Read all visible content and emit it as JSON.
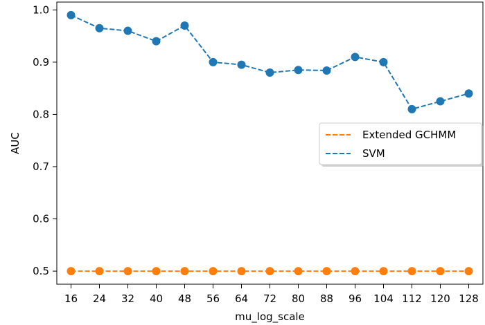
{
  "chart_data": {
    "type": "line",
    "xlabel": "mu_log_scale",
    "ylabel": "AUC",
    "categories": [
      "16",
      "24",
      "32",
      "40",
      "48",
      "56",
      "64",
      "72",
      "80",
      "88",
      "96",
      "104",
      "112",
      "120",
      "128"
    ],
    "x": [
      16,
      24,
      32,
      40,
      48,
      56,
      64,
      72,
      80,
      88,
      96,
      104,
      112,
      120,
      128
    ],
    "yticks": [
      "0.5",
      "0.6",
      "0.7",
      "0.8",
      "0.9",
      "1.0"
    ],
    "ylim": [
      0.475,
      1.015
    ],
    "xlim": [
      12,
      132
    ],
    "grid": false,
    "legend_position": "right",
    "series": [
      {
        "name": "Extended GCHMM",
        "color": "#ff7f0e",
        "linestyle": "dashed",
        "marker": "circle",
        "values": [
          0.5,
          0.5,
          0.5,
          0.5,
          0.5,
          0.5,
          0.5,
          0.5,
          0.5,
          0.5,
          0.5,
          0.5,
          0.5,
          0.5,
          0.5
        ]
      },
      {
        "name": "SVM",
        "color": "#1f77b4",
        "linestyle": "dashed",
        "marker": "circle",
        "values": [
          0.99,
          0.965,
          0.96,
          0.94,
          0.97,
          0.9,
          0.895,
          0.88,
          0.885,
          0.884,
          0.91,
          0.9,
          0.81,
          0.825,
          0.84
        ]
      }
    ]
  }
}
